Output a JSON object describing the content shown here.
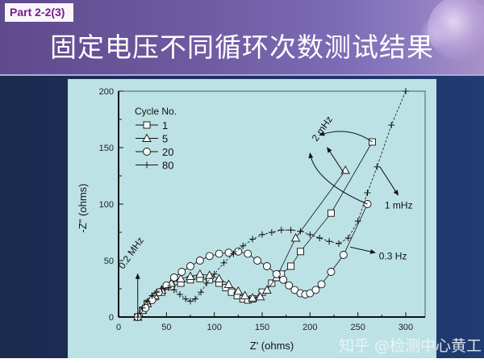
{
  "header": {
    "badge": "Part 2-2(3)",
    "title": "固定电压不同循环次数测试结果"
  },
  "watermark": "知乎 @检测中心黄工",
  "colors": {
    "header_purple": "#6e5aa0",
    "badge_text": "#7a1b8e",
    "panel_bg": "#bde2e5",
    "body_navy": "#1e3160",
    "ink": "#111111"
  },
  "chart_data": {
    "type": "scatter",
    "title": "",
    "xlabel": "Z' (ohms)",
    "ylabel": "-Z\" (ohms)",
    "xlim": [
      0,
      300
    ],
    "ylim": [
      0,
      200
    ],
    "x_ticks": [
      0,
      50,
      100,
      150,
      200,
      250,
      300
    ],
    "y_ticks": [
      0,
      50,
      100,
      150,
      200
    ],
    "grid": false,
    "legend": {
      "title": "Cycle No.",
      "position": "upper-left",
      "entries": [
        "1",
        "5",
        "20",
        "80"
      ]
    },
    "series": [
      {
        "name": "1",
        "marker": "square",
        "x": [
          20,
          25,
          30,
          38,
          45,
          55,
          65,
          75,
          85,
          95,
          105,
          112,
          118,
          124,
          130,
          135,
          140,
          150,
          160,
          170,
          180,
          190,
          222,
          265
        ],
        "y": [
          0,
          6,
          12,
          18,
          22,
          27,
          30,
          33,
          34,
          33,
          30,
          26,
          22,
          19,
          16,
          15,
          16,
          22,
          30,
          38,
          45,
          58,
          92,
          155
        ]
      },
      {
        "name": "5",
        "marker": "triangle",
        "x": [
          20,
          25,
          30,
          38,
          45,
          55,
          65,
          75,
          85,
          95,
          105,
          115,
          125,
          132,
          140,
          148,
          155,
          165,
          185,
          237
        ],
        "y": [
          0,
          6,
          12,
          19,
          24,
          30,
          34,
          36,
          38,
          37,
          34,
          29,
          23,
          19,
          17,
          18,
          24,
          35,
          70,
          130
        ]
      },
      {
        "name": "20",
        "marker": "circle",
        "x": [
          20,
          28,
          35,
          42,
          50,
          58,
          66,
          75,
          85,
          95,
          105,
          115,
          125,
          135,
          145,
          155,
          165,
          172,
          178,
          184,
          190,
          195,
          200,
          206,
          212,
          222,
          235,
          260
        ],
        "y": [
          0,
          8,
          15,
          22,
          28,
          35,
          40,
          45,
          50,
          54,
          56,
          57,
          58,
          56,
          50,
          45,
          38,
          33,
          28,
          24,
          21,
          20,
          21,
          24,
          29,
          40,
          55,
          100
        ]
      },
      {
        "name": "80",
        "marker": "plus",
        "x": [
          20,
          25,
          30,
          35,
          40,
          45,
          52,
          58,
          64,
          70,
          75,
          80,
          86,
          92,
          100,
          110,
          120,
          130,
          140,
          150,
          160,
          170,
          180,
          190,
          200,
          210,
          220,
          230,
          240,
          250,
          260,
          270,
          285,
          300
        ],
        "y": [
          0,
          8,
          14,
          19,
          22,
          25,
          26,
          24,
          20,
          16,
          14,
          16,
          22,
          30,
          38,
          48,
          56,
          63,
          69,
          73,
          75,
          77,
          77,
          76,
          73,
          70,
          67,
          65,
          70,
          85,
          110,
          133,
          170,
          200
        ]
      }
    ],
    "annotations": [
      {
        "text": "0.2 MHz",
        "x": 10,
        "y": 45,
        "rotation": -55,
        "arrow_to": [
          20,
          2
        ]
      },
      {
        "text": "2 mHz",
        "x": 210,
        "y": 160,
        "rotation": -55
      },
      {
        "text": "1 mHz",
        "x": 270,
        "y": 95
      },
      {
        "text": "0.3 Hz",
        "x": 265,
        "y": 52
      }
    ]
  }
}
